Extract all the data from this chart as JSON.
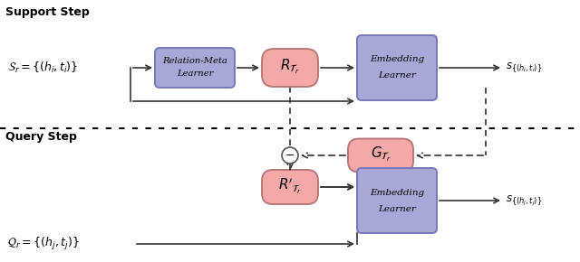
{
  "bg_color": "#ffffff",
  "pink_color": "#F4A8A8",
  "pink_edge": "#b87878",
  "purple_color": "#A8A8D8",
  "purple_edge": "#7878b8",
  "line_color": "#333333",
  "text_color": "#000000",
  "support_step_label": "Support Step",
  "query_step_label": "Query Step",
  "rml_label1": "Relation-Meta",
  "rml_label2": "Learner",
  "emb_label1": "Embedding",
  "emb_label2": "Learner",
  "sr_text": "$\\mathcal{S}_r = \\{(h_i, t_i)\\}$",
  "qr_text": "$\\mathcal{Q}_r = \\{(h_j, t_j)\\}$",
  "s_out_text": "$s_{\\{(h_i,t_i)\\}}$",
  "s_out_q_text": "$s_{\\{(h_j,t_j)\\}}$",
  "rtr_text": "$R_{\\mathcal{T}_r}$",
  "gtr_text": "$G_{\\mathcal{T}_r}$",
  "rptr_text": "$R'_{\\mathcal{T}_r}$"
}
